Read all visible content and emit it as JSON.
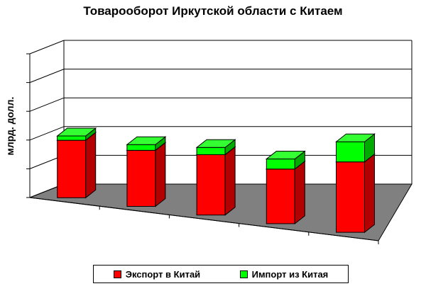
{
  "chart_data": {
    "type": "bar",
    "stacked": true,
    "three_d": true,
    "title": "Товарооборот Иркутской области с Китаем",
    "ylabel": "млрд. долл.",
    "xlabel": "",
    "categories": [
      "",
      "",
      "",
      "",
      ""
    ],
    "ylim": [
      0,
      5
    ],
    "grid": true,
    "legend_position": "bottom",
    "series": [
      {
        "name": "Экспорт в Китай",
        "color": "#ff0000",
        "values": [
          2.0,
          1.95,
          2.1,
          1.9,
          2.45
        ]
      },
      {
        "name": "Импорт из Китая",
        "color": "#00ff00",
        "values": [
          0.15,
          0.2,
          0.25,
          0.35,
          0.7
        ]
      }
    ]
  },
  "legend": {
    "items": [
      {
        "label": "Экспорт в Китай",
        "color": "#ff0000"
      },
      {
        "label": "Импорт из Китая",
        "color": "#00ff00"
      }
    ]
  }
}
